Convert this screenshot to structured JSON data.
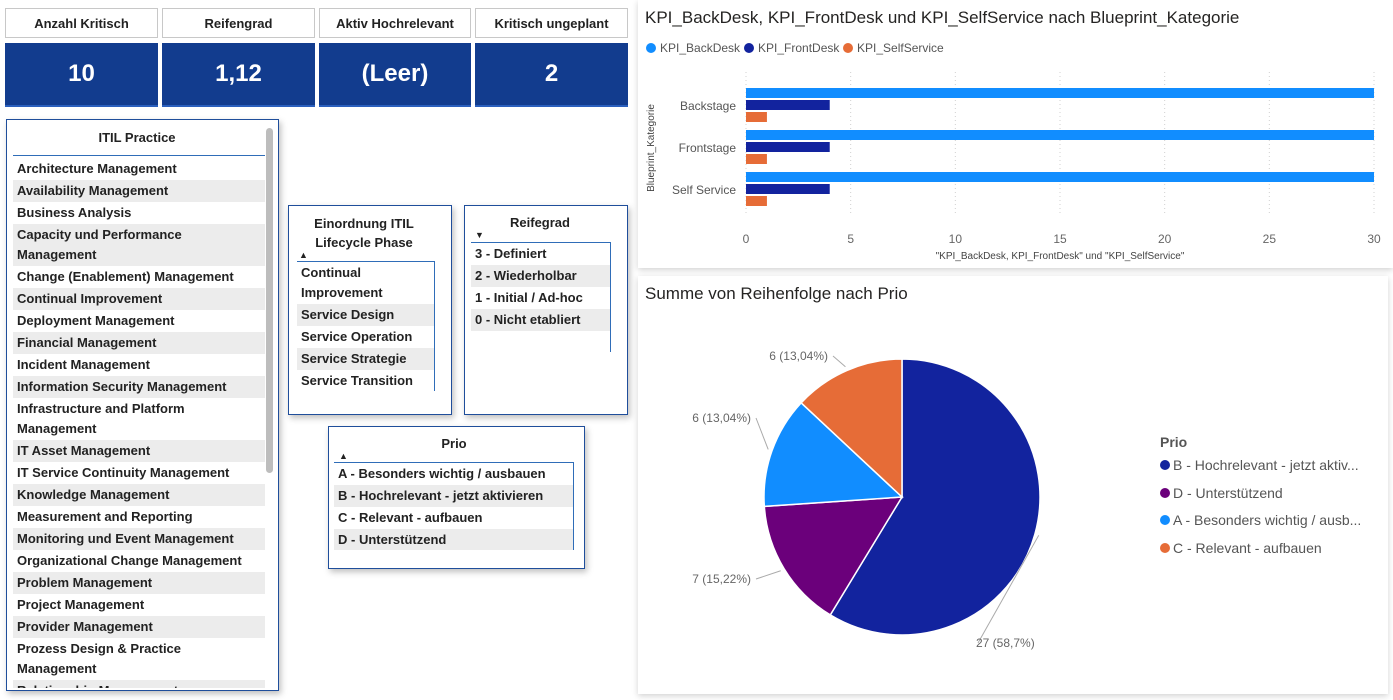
{
  "kpis": [
    {
      "label": "Anzahl Kritisch",
      "value": "10"
    },
    {
      "label": "Reifengrad",
      "value": "1,12"
    },
    {
      "label": "Aktiv Hochrelevant",
      "value": "(Leer)"
    },
    {
      "label": "Kritisch ungeplant",
      "value": "2"
    }
  ],
  "itil_slicer": {
    "title": "ITIL Practice",
    "items": [
      "Architecture Management",
      "Availability Management",
      "Business Analysis",
      "Capacity und Performance Management",
      "Change (Enablement) Management",
      "Continual Improvement",
      "Deployment Management",
      "Financial Management",
      "Incident Management",
      "Information Security Management",
      "Infrastructure and Platform Management",
      "IT Asset Management",
      "IT Service Continuity Management",
      "Knowledge Management",
      "Measurement and Reporting",
      "Monitoring und Event Management",
      "Organizational Change Management",
      "Problem Management",
      "Project Management",
      "Provider Management",
      "Prozess Design & Practice Management",
      "Relationship Management"
    ]
  },
  "phase_slicer": {
    "title": "Einordnung ITIL Lifecycle Phase",
    "arrow": "▲",
    "items": [
      "Continual Improvement",
      "Service Design",
      "Service Operation",
      "Service Strategie",
      "Service Transition"
    ]
  },
  "reifegrad_slicer": {
    "title": "Reifegrad",
    "arrow": "▼",
    "items": [
      "3 - Definiert",
      "2 - Wiederholbar",
      "1 - Initial / Ad-hoc",
      "0 - Nicht etabliert"
    ]
  },
  "prio_slicer": {
    "title": "Prio",
    "arrow": "▲",
    "items": [
      "A - Besonders wichtig / ausbauen",
      "B - Hochrelevant - jetzt aktivieren",
      "C - Relevant - aufbauen",
      "D - Unterstützend"
    ]
  },
  "bar_chart_title": "KPI_BackDesk, KPI_FrontDesk und KPI_SelfService nach Blueprint_Kategorie",
  "pie_chart_title": "Summe von Reihenfolge nach Prio",
  "chart_data": [
    {
      "type": "bar",
      "orientation": "horizontal",
      "title": "KPI_BackDesk, KPI_FrontDesk und KPI_SelfService nach Blueprint_Kategorie",
      "categories": [
        "Backstage",
        "Frontstage",
        "Self Service"
      ],
      "series": [
        {
          "name": "KPI_BackDesk",
          "color": "#118dff",
          "values": [
            30,
            30,
            30
          ]
        },
        {
          "name": "KPI_FrontDesk",
          "color": "#12239e",
          "values": [
            4,
            4,
            4
          ]
        },
        {
          "name": "KPI_SelfService",
          "color": "#e66c37",
          "values": [
            1,
            1,
            1
          ]
        }
      ],
      "xlabel": "\"KPI_BackDesk, KPI_FrontDesk\" und \"KPI_SelfService\"",
      "ylabel": "Blueprint_Kategorie",
      "xlim": [
        0,
        30
      ],
      "xticks": [
        0,
        5,
        10,
        15,
        20,
        25,
        30
      ],
      "grid": true,
      "legend": "top-left"
    },
    {
      "type": "pie",
      "title": "Summe von Reihenfolge nach Prio",
      "legend_title": "Prio",
      "legend": "right",
      "slices": [
        {
          "name": "B - Hochrelevant - jetzt aktiv...",
          "value": 27,
          "label": "27 (58,7%)",
          "color": "#12239e"
        },
        {
          "name": "D - Unterstützend",
          "value": 7,
          "label": "7 (15,22%)",
          "color": "#6b007b"
        },
        {
          "name": "A - Besonders wichtig / ausb...",
          "value": 6,
          "label": "6 (13,04%)",
          "color": "#118dff"
        },
        {
          "name": "C - Relevant - aufbauen",
          "value": 6,
          "label": "6 (13,04%)",
          "color": "#e66c37"
        }
      ]
    }
  ]
}
